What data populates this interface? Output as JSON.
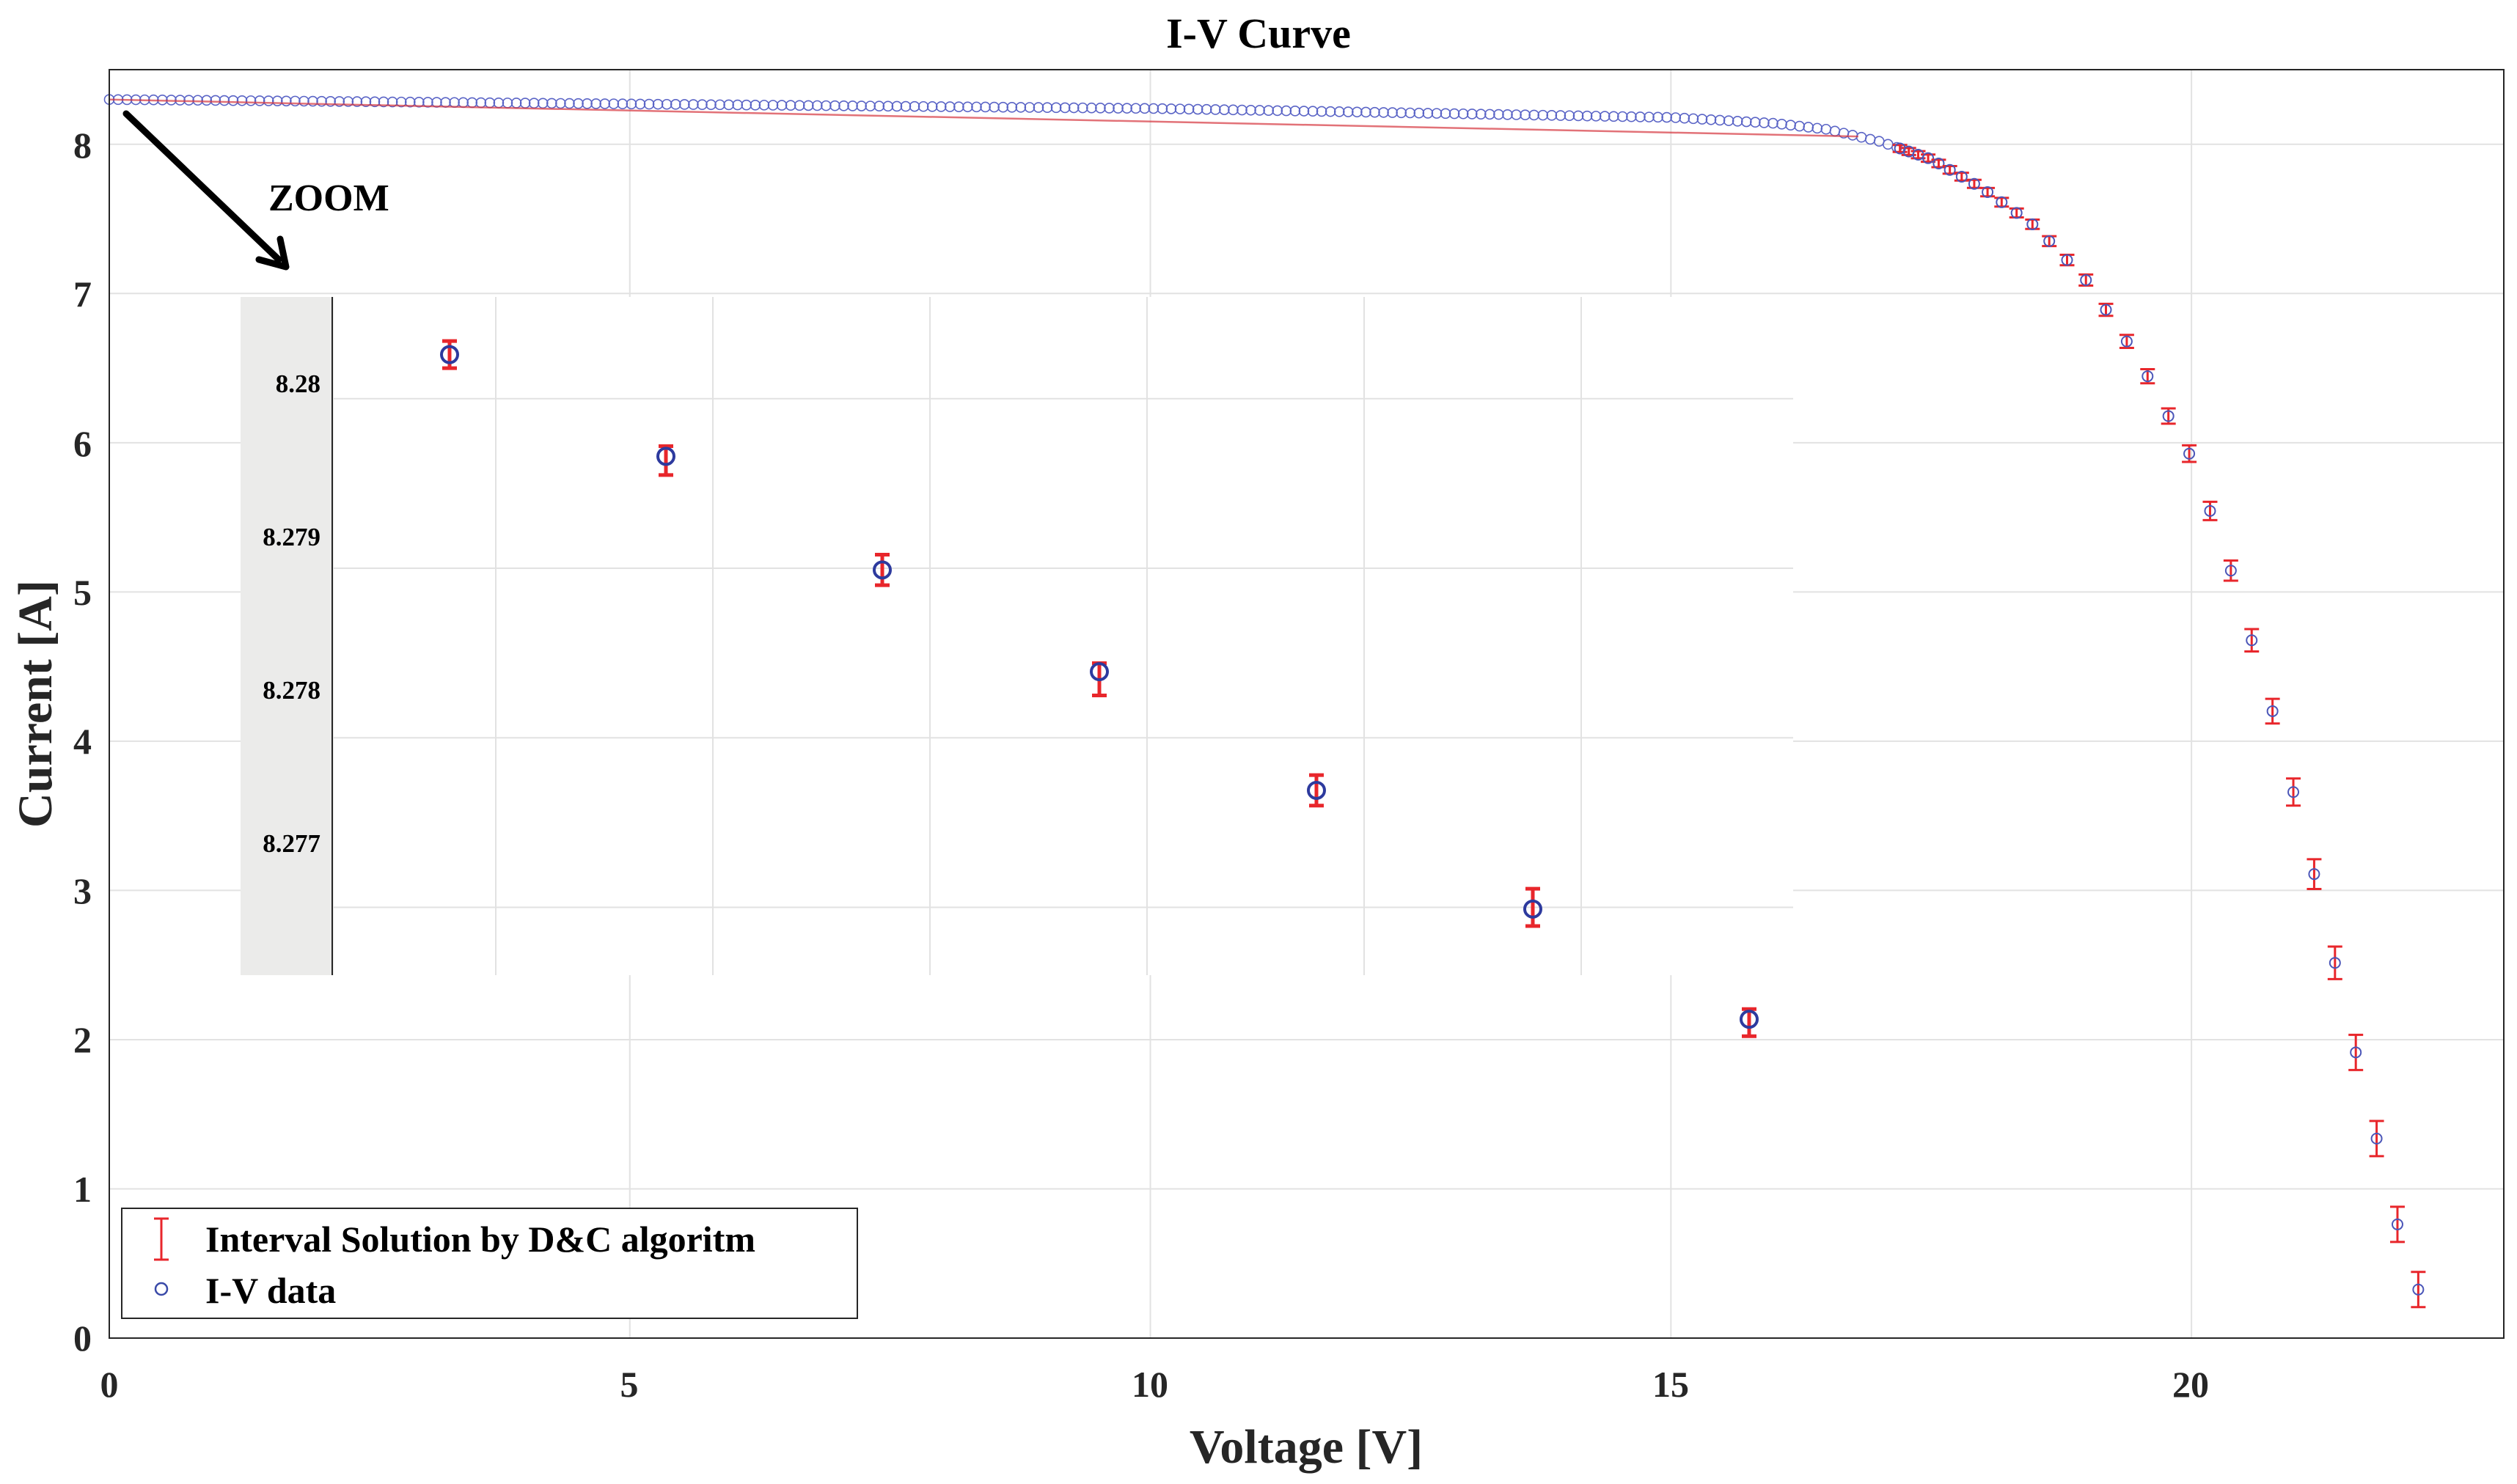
{
  "chart_data": {
    "type": "scatter",
    "title": "I-V Curve",
    "xlabel": "Voltage [V]",
    "ylabel": "Current [A]",
    "xlim": [
      0,
      23
    ],
    "ylim": [
      0,
      8.5
    ],
    "grid": true,
    "xticks": [
      "0",
      "5",
      "10",
      "15",
      "20"
    ],
    "yticks": [
      "0",
      "1",
      "2",
      "3",
      "4",
      "5",
      "6",
      "7",
      "8"
    ],
    "legend": {
      "placement": "bottom-left",
      "entries": [
        "Interval Solution by D&C algoritm",
        "I-V data"
      ]
    },
    "annotation": "ZOOM",
    "series": [
      {
        "name": "I-V data",
        "marker": "circle",
        "color": "#3a4aa8",
        "x": [
          0,
          5,
          10,
          15,
          16,
          16.5,
          17,
          17.5,
          18,
          18.5,
          19,
          19.5,
          19.8,
          20,
          20.4,
          20.8,
          21.2,
          21.6,
          22,
          22.2
        ],
        "y": [
          8.3,
          8.27,
          8.24,
          8.18,
          8.14,
          8.1,
          8.02,
          7.9,
          7.7,
          7.45,
          7.08,
          6.55,
          6.15,
          5.9,
          5.1,
          4.15,
          3.05,
          1.85,
          0.7,
          0.28
        ]
      },
      {
        "name": "Interval Solution by D&C algoritm",
        "marker": "errorbar",
        "color": "#e8262b",
        "x": [
          0,
          5,
          10,
          15,
          16,
          16.5,
          17,
          17.5,
          18,
          18.5,
          19,
          19.5,
          19.8,
          20,
          20.4,
          20.8,
          21.2,
          21.6,
          22,
          22.2
        ],
        "y": [
          8.3,
          8.27,
          8.24,
          8.18,
          8.14,
          8.1,
          8.02,
          7.9,
          7.7,
          7.45,
          7.08,
          6.55,
          6.15,
          5.9,
          5.1,
          4.15,
          3.05,
          1.85,
          0.7,
          0.28
        ]
      }
    ],
    "inset": {
      "yticks": [
        "8.28",
        "8.279",
        "8.278",
        "8.277"
      ],
      "ylim": [
        8.2766,
        8.2806
      ],
      "points": [
        {
          "y": 8.28026,
          "lo": 8.28018,
          "hi": 8.28034
        },
        {
          "y": 8.27966,
          "lo": 8.27955,
          "hi": 8.27972
        },
        {
          "y": 8.27899,
          "lo": 8.2789,
          "hi": 8.27908
        },
        {
          "y": 8.27839,
          "lo": 8.27825,
          "hi": 8.27844
        },
        {
          "y": 8.27769,
          "lo": 8.2776,
          "hi": 8.27778
        },
        {
          "y": 8.27699,
          "lo": 8.27689,
          "hi": 8.27711
        },
        {
          "y": 8.27634,
          "lo": 8.27624,
          "hi": 8.2764
        }
      ]
    }
  }
}
